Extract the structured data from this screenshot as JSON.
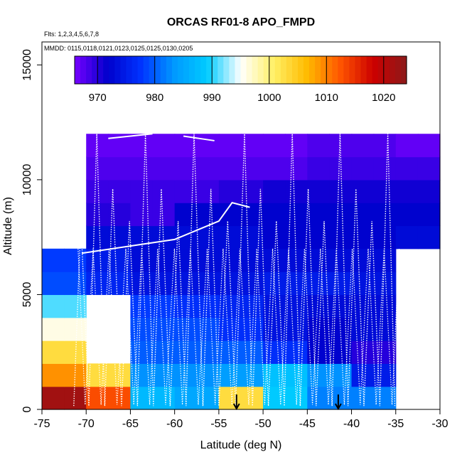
{
  "chart_data": {
    "type": "heatmap",
    "title": "ORCAS RF01-8 APO_FMPD",
    "subtitle_flights": "Flts: 1,2,3,4,5,6,7,8",
    "subtitle_dates": "MMDD: 0115,0118,0121,0123,0125,0125,0130,0205",
    "xlabel": "Latitude (deg N)",
    "ylabel": "Altitude (m)",
    "xlim": [
      -75,
      -30
    ],
    "ylim": [
      0,
      16000
    ],
    "x_ticks": [
      -75,
      -70,
      -65,
      -60,
      -55,
      -50,
      -45,
      -40,
      -35,
      -30
    ],
    "y_ticks": [
      0,
      5000,
      10000,
      15000
    ],
    "colorbar": {
      "range": [
        966,
        1024
      ],
      "ticks": [
        970,
        980,
        990,
        1000,
        1010,
        1020
      ],
      "palette": [
        "#7700ff",
        "#0000cc",
        "#0033ff",
        "#0099ff",
        "#00ccff",
        "#ffffff",
        "#fff066",
        "#ffbb00",
        "#ff5500",
        "#cc0000",
        "#8b1a1a"
      ]
    },
    "grid": {
      "lat_edges": [
        -75,
        -72.5,
        -70,
        -67.5,
        -65,
        -62.5,
        -60,
        -57.5,
        -55,
        -52.5,
        -50,
        -47.5,
        -45,
        -42.5,
        -40,
        -37.5,
        -35,
        -32.5,
        -30
      ],
      "alt_edges": [
        0,
        1000,
        2000,
        3000,
        4000,
        5000,
        6000,
        7000,
        8000,
        9000,
        10000,
        11000,
        12000
      ],
      "values": [
        [
          1022,
          1022,
          1013,
          1013,
          987,
          987,
          985,
          985,
          1003,
          1003,
          989,
          989,
          982,
          982,
          982,
          982,
          null,
          null
        ],
        [
          1009,
          1009,
          1003,
          1003,
          983,
          983,
          983,
          983,
          984,
          984,
          988,
          988,
          983,
          983,
          975,
          975,
          null,
          null
        ],
        [
          1003,
          1003,
          null,
          null,
          980,
          980,
          980,
          980,
          980,
          980,
          977,
          977,
          972,
          972,
          970,
          970,
          null,
          null
        ],
        [
          996,
          996,
          null,
          null,
          979,
          979,
          979,
          979,
          977,
          977,
          974,
          974,
          972,
          972,
          973,
          973,
          null,
          null
        ],
        [
          991,
          991,
          null,
          null,
          978,
          978,
          977,
          977,
          976,
          976,
          974,
          974,
          973,
          973,
          973,
          973,
          null,
          null
        ],
        [
          979,
          979,
          976,
          976,
          974,
          974,
          974,
          974,
          974,
          974,
          975,
          975,
          975,
          975,
          974,
          974,
          null,
          null
        ],
        [
          978,
          978,
          975,
          975,
          973,
          973,
          973,
          973,
          973,
          973,
          973,
          973,
          973,
          973,
          973,
          973,
          null,
          null
        ],
        [
          null,
          null,
          973,
          973,
          973,
          973,
          973,
          973,
          973,
          973,
          972,
          972,
          972,
          972,
          972,
          972,
          973,
          973
        ],
        [
          null,
          null,
          970,
          970,
          969,
          969,
          972,
          972,
          972,
          972,
          972,
          972,
          972,
          972,
          972,
          972,
          972,
          972
        ],
        [
          null,
          null,
          969,
          969,
          969,
          969,
          969,
          969,
          970,
          970,
          971,
          971,
          971,
          971,
          971,
          971,
          971,
          971
        ],
        [
          null,
          null,
          968,
          968,
          968,
          968,
          968,
          968,
          968,
          968,
          968,
          968,
          969,
          969,
          969,
          969,
          969,
          969
        ],
        [
          null,
          null,
          967,
          967,
          967,
          967,
          967,
          967,
          967,
          967,
          967,
          967,
          968,
          968,
          968,
          968,
          967,
          967
        ]
      ]
    },
    "flight_track_latitudes": [
      -71.4,
      -70.6,
      -69.7,
      -68.8,
      -67.9,
      -67.0,
      -66.0,
      -65.1,
      -64.2,
      -63.3,
      -62.4,
      -61.5,
      -60.5,
      -59.6,
      -58.7,
      -57.8,
      -56.8,
      -55.9,
      -55.0,
      -54.0,
      -53.1,
      -52.1,
      -51.2,
      -50.3,
      -49.4,
      -48.5,
      -47.6,
      -46.7,
      -45.8,
      -44.9,
      -44.0,
      -43.1,
      -42.2,
      -41.3,
      -40.4,
      -39.5,
      -38.6,
      -37.7,
      -36.8,
      -35.9,
      -35.1
    ],
    "flight_track_ceiling_m": 12000,
    "arrows_lat": [
      -53,
      -41.5
    ]
  }
}
